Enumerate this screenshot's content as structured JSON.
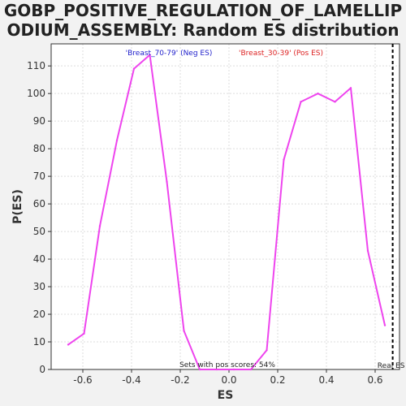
{
  "chart_data": {
    "type": "line",
    "title_lines": [
      "GOBP_POSITIVE_REGULATION_OF_LAMELLIP",
      "ODIUM_ASSEMBLY: Random ES distribution"
    ],
    "xlabel": "ES",
    "ylabel": "P(ES)",
    "xlim": [
      -0.73,
      0.7
    ],
    "ylim": [
      0,
      118
    ],
    "x_ticks": [
      -0.6,
      -0.4,
      -0.2,
      0.0,
      0.2,
      0.4,
      0.6
    ],
    "x_tick_labels": [
      "-0.6",
      "-0.4",
      "-0.2",
      "0.0",
      "0.2",
      "0.4",
      "0.6"
    ],
    "y_ticks": [
      0,
      10,
      20,
      30,
      40,
      50,
      60,
      70,
      80,
      90,
      100,
      110
    ],
    "y_tick_labels": [
      "0",
      "10",
      "20",
      "30",
      "40",
      "50",
      "60",
      "70",
      "80",
      "90",
      "100",
      "110"
    ],
    "grid": true,
    "legend": [
      {
        "label": "'Breast_70-79' (Neg ES)",
        "color": "#2222cc"
      },
      {
        "label": "'Breast_30-39' (Pos ES)",
        "color": "#dd2222"
      }
    ],
    "series": [
      {
        "color": "#ee44ee",
        "x": [
          -0.66,
          -0.595,
          -0.53,
          -0.46,
          -0.39,
          -0.325,
          -0.255,
          -0.185,
          -0.12,
          -0.05,
          0.02,
          0.09,
          0.155,
          0.225,
          0.295,
          0.365,
          0.435,
          0.5,
          0.57,
          0.64
        ],
        "y": [
          9,
          13,
          52,
          83,
          109,
          114,
          68,
          14,
          0,
          0,
          0,
          0,
          7,
          76,
          97,
          100,
          97,
          102,
          43,
          16
        ]
      }
    ],
    "real_es": {
      "x": 0.672,
      "label": "Real ES",
      "color": "#000000"
    },
    "annotation": "Sets with pos scores: 54%"
  },
  "colors": {
    "plot_background": "#ffffff",
    "page_background": "#f2f2f2",
    "grid": "#dddddd",
    "axis": "#333333"
  }
}
